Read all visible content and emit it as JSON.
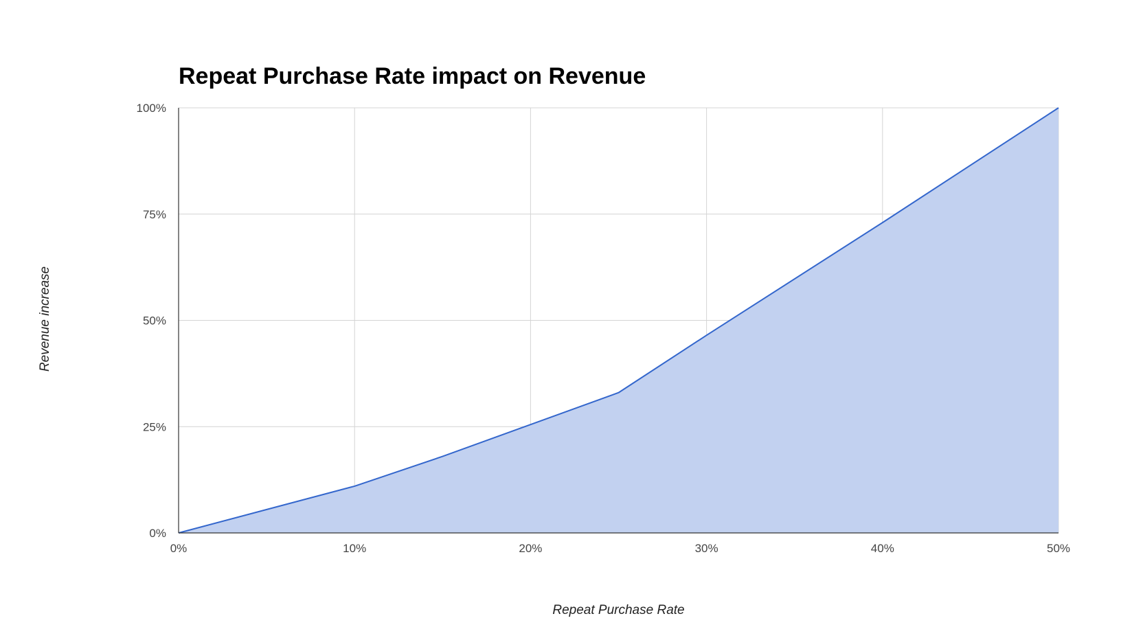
{
  "chart_data": {
    "type": "area",
    "title": "Repeat Purchase Rate impact on Revenue",
    "xlabel": "Repeat Purchase Rate",
    "ylabel": "Revenue increase",
    "xlim": [
      0,
      50
    ],
    "ylim": [
      0,
      100
    ],
    "x_ticks": [
      "0%",
      "10%",
      "20%",
      "30%",
      "40%",
      "50%"
    ],
    "y_ticks": [
      "0%",
      "25%",
      "50%",
      "75%",
      "100%"
    ],
    "grid": true,
    "legend": "none",
    "series": [
      {
        "x": [
          0,
          10,
          15,
          20,
          25,
          30,
          40,
          50
        ],
        "values": [
          0,
          11,
          18,
          25.5,
          33,
          46.5,
          73,
          100
        ],
        "line_color": "#3366cc",
        "fill_color": "#c2d1f0"
      }
    ]
  }
}
